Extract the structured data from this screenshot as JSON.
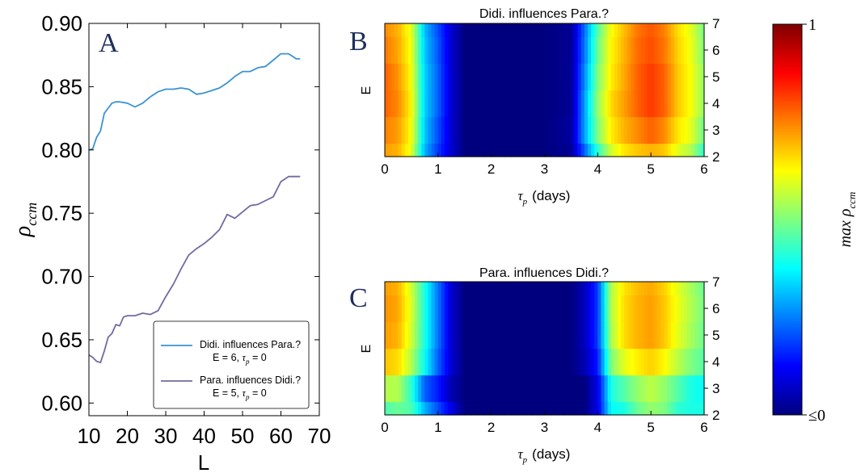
{
  "colors": {
    "series1": "#3a93cf",
    "series2": "#7469a1",
    "colormap": [
      "#00007f",
      "#0000ff",
      "#007fff",
      "#00ffff",
      "#7fff7f",
      "#ffff00",
      "#ff7f00",
      "#ff0000",
      "#7f0000"
    ]
  },
  "panels": {
    "a": {
      "letter": "A",
      "ylabel_main": "ρ",
      "ylabel_sub": "ccm",
      "xlabel": "L"
    },
    "b": {
      "letter": "B",
      "title": "Didi. influences Para.?",
      "ylabel": "E",
      "xlabel_sym": "τ",
      "xlabel_sub": "p",
      "xlabel_rest": "(days)"
    },
    "c": {
      "letter": "C",
      "title": "Para. influences Didi.?",
      "ylabel": "E",
      "xlabel_sym": "τ",
      "xlabel_sub": "p",
      "xlabel_rest": "(days)"
    }
  },
  "legend": {
    "items": [
      {
        "name": "Didi. influences Para.?",
        "sub_prefix": "E = 6, ",
        "tau": "τ",
        "tau_sub": "p",
        "sub_suffix": " = 0"
      },
      {
        "name": "Para. influences Didi.?",
        "sub_prefix": "E = 5, ",
        "tau": "τ",
        "tau_sub": "p",
        "sub_suffix": " = 0"
      }
    ]
  },
  "colorbar": {
    "label_main": "max ρ",
    "label_sub": "ccm",
    "top_label": "1",
    "bottom_label": "≤0"
  },
  "chart_data": [
    {
      "type": "line",
      "xlabel": "L",
      "ylabel": "ρccm",
      "xlim": [
        10,
        70
      ],
      "ylim": [
        0.59,
        0.9
      ],
      "xticks": [
        10,
        20,
        30,
        40,
        50,
        60,
        70
      ],
      "yticks": [
        0.6,
        0.65,
        0.7,
        0.75,
        0.8,
        0.85,
        0.9
      ],
      "legend_position": "lower-right",
      "series": [
        {
          "name": "Didi. influences Para.?",
          "x": [
            10,
            11,
            12,
            13,
            14,
            15,
            16,
            17,
            18,
            20,
            22,
            24,
            26,
            28,
            30,
            32,
            34,
            36,
            38,
            40,
            42,
            44,
            46,
            48,
            50,
            52,
            54,
            56,
            58,
            60,
            62,
            64,
            65
          ],
          "y": [
            0.8,
            0.801,
            0.81,
            0.815,
            0.829,
            0.833,
            0.837,
            0.838,
            0.838,
            0.837,
            0.834,
            0.837,
            0.842,
            0.846,
            0.848,
            0.848,
            0.849,
            0.848,
            0.844,
            0.845,
            0.847,
            0.849,
            0.853,
            0.858,
            0.862,
            0.862,
            0.865,
            0.866,
            0.871,
            0.876,
            0.876,
            0.872,
            0.872
          ]
        },
        {
          "name": "Para. influences Didi.?",
          "x": [
            10,
            11,
            12,
            13,
            14,
            15,
            16,
            17,
            18,
            19,
            20,
            22,
            24,
            26,
            28,
            30,
            32,
            34,
            36,
            38,
            40,
            42,
            44,
            46,
            48,
            50,
            52,
            54,
            56,
            58,
            60,
            62,
            64,
            65
          ],
          "y": [
            0.638,
            0.636,
            0.633,
            0.632,
            0.641,
            0.652,
            0.655,
            0.662,
            0.661,
            0.668,
            0.669,
            0.669,
            0.671,
            0.67,
            0.673,
            0.684,
            0.694,
            0.706,
            0.717,
            0.722,
            0.726,
            0.731,
            0.737,
            0.749,
            0.746,
            0.751,
            0.756,
            0.757,
            0.76,
            0.763,
            0.775,
            0.779,
            0.779,
            0.779
          ]
        }
      ]
    },
    {
      "type": "heatmap",
      "title": "Didi. influences Para.?",
      "xlabel": "τp (days)",
      "ylabel": "E",
      "xlim": [
        0,
        6
      ],
      "ylim": [
        2,
        7
      ],
      "xticks": [
        0,
        1,
        2,
        3,
        4,
        5,
        6
      ],
      "yticks": [
        2,
        3,
        4,
        5,
        6,
        7
      ],
      "colorbar_range": [
        0,
        1
      ],
      "x": [
        0,
        0.25,
        0.5,
        0.75,
        1.0,
        1.25,
        1.5,
        2.0,
        2.5,
        3.0,
        3.5,
        3.75,
        4.0,
        4.25,
        4.5,
        4.75,
        5.0,
        5.25,
        5.5,
        5.75,
        6.0
      ],
      "y": [
        2,
        3,
        4,
        5,
        6,
        7
      ],
      "values": [
        [
          0.72,
          0.7,
          0.6,
          0.3,
          0.18,
          0.08,
          0,
          0,
          0,
          0,
          0.02,
          0.22,
          0.42,
          0.58,
          0.65,
          0.68,
          0.7,
          0.68,
          0.6,
          0.55,
          0.42
        ],
        [
          0.75,
          0.72,
          0.62,
          0.32,
          0.2,
          0.08,
          0,
          0,
          0,
          0,
          0.03,
          0.28,
          0.5,
          0.64,
          0.7,
          0.74,
          0.78,
          0.74,
          0.65,
          0.6,
          0.48
        ],
        [
          0.78,
          0.74,
          0.63,
          0.33,
          0.22,
          0.08,
          0,
          0,
          0,
          0,
          0.02,
          0.28,
          0.52,
          0.66,
          0.72,
          0.78,
          0.82,
          0.78,
          0.68,
          0.62,
          0.52
        ],
        [
          0.78,
          0.73,
          0.62,
          0.33,
          0.22,
          0.08,
          0,
          0,
          0,
          0,
          0.02,
          0.26,
          0.5,
          0.64,
          0.71,
          0.78,
          0.82,
          0.78,
          0.68,
          0.62,
          0.52
        ],
        [
          0.76,
          0.71,
          0.61,
          0.32,
          0.21,
          0.08,
          0,
          0,
          0,
          0,
          0.02,
          0.24,
          0.48,
          0.63,
          0.7,
          0.77,
          0.8,
          0.76,
          0.67,
          0.61,
          0.5
        ],
        [
          0.74,
          0.7,
          0.6,
          0.31,
          0.2,
          0.08,
          0,
          0,
          0,
          0,
          0.02,
          0.23,
          0.46,
          0.62,
          0.69,
          0.76,
          0.79,
          0.75,
          0.66,
          0.6,
          0.49
        ]
      ]
    },
    {
      "type": "heatmap",
      "title": "Para. influences Didi.?",
      "xlabel": "τp (days)",
      "ylabel": "E",
      "xlim": [
        0,
        6
      ],
      "ylim": [
        2,
        7
      ],
      "xticks": [
        0,
        1,
        2,
        3,
        4,
        5,
        6
      ],
      "yticks": [
        2,
        3,
        4,
        5,
        6,
        7
      ],
      "colorbar_range": [
        0,
        1
      ],
      "x": [
        0,
        0.25,
        0.5,
        0.75,
        1.0,
        1.25,
        1.5,
        2.0,
        2.5,
        3.0,
        3.5,
        3.75,
        4.0,
        4.25,
        4.5,
        4.75,
        5.0,
        5.25,
        5.5,
        5.75,
        6.0
      ],
      "y": [
        2,
        3,
        4,
        5,
        6,
        7
      ],
      "values": [
        [
          0.45,
          0.48,
          0.45,
          0.3,
          0.2,
          0.1,
          0,
          0,
          0,
          0,
          0,
          0,
          0.1,
          0.38,
          0.4,
          0.48,
          0.52,
          0.5,
          0.42,
          0.4,
          0.4
        ],
        [
          0.55,
          0.55,
          0.42,
          0.22,
          0.15,
          0.05,
          0,
          0,
          0,
          0,
          0,
          0,
          0.1,
          0.4,
          0.46,
          0.52,
          0.56,
          0.52,
          0.46,
          0.4,
          0.38
        ],
        [
          0.68,
          0.66,
          0.55,
          0.38,
          0.22,
          0.08,
          0,
          0,
          0,
          0,
          0,
          0.05,
          0.15,
          0.5,
          0.6,
          0.64,
          0.67,
          0.63,
          0.56,
          0.5,
          0.46
        ],
        [
          0.72,
          0.7,
          0.58,
          0.4,
          0.24,
          0.08,
          0,
          0,
          0,
          0,
          0,
          0.06,
          0.18,
          0.54,
          0.66,
          0.7,
          0.72,
          0.68,
          0.6,
          0.54,
          0.48
        ],
        [
          0.73,
          0.71,
          0.59,
          0.4,
          0.24,
          0.08,
          0,
          0,
          0,
          0,
          0,
          0.06,
          0.18,
          0.55,
          0.66,
          0.7,
          0.72,
          0.68,
          0.61,
          0.55,
          0.49
        ],
        [
          0.72,
          0.7,
          0.58,
          0.4,
          0.24,
          0.08,
          0,
          0,
          0,
          0,
          0,
          0.06,
          0.18,
          0.55,
          0.65,
          0.69,
          0.71,
          0.67,
          0.6,
          0.54,
          0.48
        ]
      ]
    }
  ]
}
